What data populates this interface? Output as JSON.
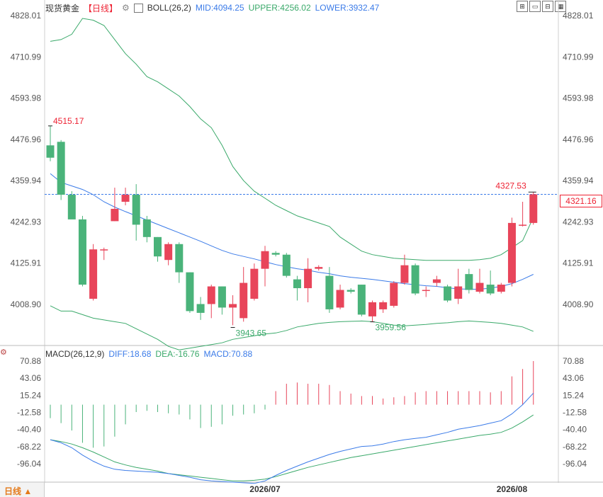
{
  "header": {
    "title": "现货黄金",
    "period_bracket": "【日线】",
    "boll_label": "BOLL(26,2)",
    "mid_label": "MID:4094.25",
    "upper_label": "UPPER:4256.02",
    "lower_label": "LOWER:3932.47"
  },
  "macd_header": {
    "macd_label": "MACD(26,12,9)",
    "diff_label": "DIFF:18.68",
    "dea_label": "DEA:-16.76",
    "macd_value_label": "MACD:70.88"
  },
  "footer": {
    "period_label": "日线 ▲",
    "x_ticks": [
      "2026/07",
      "2026/08"
    ]
  },
  "toolbar": {
    "icons": [
      "expand-icon",
      "minus-icon",
      "align-icon",
      "settings-icon"
    ]
  },
  "colors": {
    "up": "#e8455a",
    "down": "#4ab37a",
    "mid": "#3b7be8",
    "boll_band": "#3aa96a",
    "dea": "#3aa96a",
    "diff": "#3b7be8"
  },
  "current_price": "4321.16",
  "chart_data": [
    {
      "type": "candlestick",
      "title": "现货黄金",
      "y_ticks": [
        "4828.01",
        "4710.99",
        "4593.98",
        "4476.96",
        "4359.94",
        "4242.93",
        "4125.91",
        "4008.90"
      ],
      "ylim": [
        3880,
        4830
      ],
      "annotations": [
        {
          "text": "4515.17",
          "value": 4515.17
        },
        {
          "text": "3943.65",
          "value": 3943.65
        },
        {
          "text": "3959.56",
          "value": 3959.56
        },
        {
          "text": "4327.53",
          "value": 4327.53
        }
      ],
      "candles": [
        [
          4460,
          4425,
          4515.17,
          4415
        ],
        [
          4470,
          4320,
          4475,
          4305
        ],
        [
          4320,
          4250,
          4330,
          4275
        ],
        [
          4250,
          4065,
          4260,
          4060
        ],
        [
          4025,
          4165,
          4180,
          4020
        ],
        [
          4165,
          4165,
          4170,
          4135
        ],
        [
          4245,
          4280,
          4340,
          4245
        ],
        [
          4300,
          4320,
          4340,
          4290
        ],
        [
          4320,
          4235,
          4350,
          4190
        ],
        [
          4250,
          4200,
          4260,
          4185
        ],
        [
          4200,
          4145,
          4200,
          4130
        ],
        [
          4135,
          4180,
          4185,
          4120
        ],
        [
          4180,
          4100,
          4185,
          4070
        ],
        [
          4100,
          3990,
          4100,
          3985
        ],
        [
          4010,
          3985,
          4030,
          3965
        ],
        [
          4010,
          4060,
          4065,
          3970
        ],
        [
          4060,
          4000,
          4060,
          3980
        ],
        [
          4000,
          4010,
          4035,
          3950
        ],
        [
          3970,
          4070,
          4115,
          3960
        ],
        [
          4025,
          4110,
          4125,
          4020
        ],
        [
          4110,
          4160,
          4175,
          4060
        ],
        [
          4155,
          4150,
          4160,
          4145
        ],
        [
          4150,
          4090,
          4155,
          4085
        ],
        [
          4080,
          4055,
          4090,
          4020
        ],
        [
          4055,
          4110,
          4140,
          4015
        ],
        [
          4110,
          4115,
          4120,
          4105
        ],
        [
          4090,
          3995,
          4115,
          3985
        ],
        [
          4000,
          4050,
          4065,
          3995
        ],
        [
          4050,
          4045,
          4055,
          4040
        ],
        [
          4065,
          3980,
          4065,
          3975
        ],
        [
          3975,
          4015,
          4020,
          3959.56
        ],
        [
          3995,
          4015,
          4020,
          3985
        ],
        [
          4005,
          4070,
          4075,
          4000
        ],
        [
          4070,
          4120,
          4150,
          4065
        ],
        [
          4120,
          4040,
          4125,
          4035
        ],
        [
          4050,
          4050,
          4060,
          4030
        ],
        [
          4070,
          4080,
          4090,
          4060
        ],
        [
          4060,
          4020,
          4065,
          4015
        ],
        [
          4025,
          4060,
          4110,
          4010
        ],
        [
          4095,
          4050,
          4110,
          4040
        ],
        [
          4045,
          4070,
          4110,
          4040
        ],
        [
          4065,
          4040,
          4105,
          4035
        ],
        [
          4045,
          4065,
          4070,
          4040
        ],
        [
          4070,
          4240,
          4255,
          4060
        ],
        [
          4235,
          4235,
          4300,
          4230
        ],
        [
          4240,
          4321.16,
          4327.53,
          4235
        ]
      ],
      "mid": [
        4380,
        4355,
        4345,
        4335,
        4320,
        4300,
        4285,
        4272,
        4260,
        4248,
        4236,
        4224,
        4212,
        4200,
        4188,
        4175,
        4162,
        4152,
        4145,
        4138,
        4130,
        4122,
        4116,
        4110,
        4106,
        4100,
        4096,
        4090,
        4086,
        4083,
        4080,
        4076,
        4072,
        4068,
        4065,
        4062,
        4060,
        4056,
        4053,
        4052,
        4052,
        4055,
        4060,
        4068,
        4080,
        4094.25
      ],
      "upper": [
        4755,
        4760,
        4775,
        4820,
        4815,
        4800,
        4760,
        4720,
        4690,
        4655,
        4640,
        4620,
        4600,
        4570,
        4535,
        4510,
        4460,
        4400,
        4360,
        4330,
        4310,
        4290,
        4275,
        4260,
        4250,
        4240,
        4230,
        4200,
        4180,
        4160,
        4150,
        4145,
        4140,
        4138,
        4136,
        4134,
        4134,
        4134,
        4134,
        4134,
        4136,
        4140,
        4150,
        4170,
        4190,
        4256.02
      ],
      "lower": [
        4005,
        3990,
        3990,
        3980,
        3970,
        3965,
        3960,
        3955,
        3940,
        3925,
        3910,
        3890,
        3880,
        3885,
        3890,
        3895,
        3900,
        3910,
        3915,
        3920,
        3925,
        3928,
        3935,
        3945,
        3950,
        3955,
        3958,
        3960,
        3961,
        3962,
        3960,
        3955,
        3950,
        3948,
        3950,
        3952,
        3955,
        3957,
        3960,
        3962,
        3960,
        3958,
        3955,
        3950,
        3945,
        3932.47
      ]
    },
    {
      "type": "macd",
      "title": "MACD(26,12,9)",
      "y_ticks": [
        "70.88",
        "43.06",
        "15.24",
        "-12.58",
        "-40.40",
        "-68.22",
        "-96.04"
      ],
      "ylim": [
        -120,
        80
      ],
      "diff": [
        -57,
        -62,
        -70,
        -82,
        -92,
        -100,
        -105,
        -107,
        -108,
        -109,
        -110,
        -112,
        -115,
        -118,
        -122,
        -124,
        -125,
        -126,
        -127,
        -128,
        -124,
        -115,
        -107,
        -100,
        -93,
        -87,
        -81,
        -76,
        -72,
        -68,
        -67,
        -64,
        -60,
        -57,
        -55,
        -53,
        -49,
        -45,
        -40,
        -37,
        -34,
        -30,
        -26,
        -15,
        0,
        18.68
      ],
      "dea": [
        -57,
        -60,
        -64,
        -70,
        -77,
        -85,
        -93,
        -98,
        -102,
        -105,
        -108,
        -112,
        -114,
        -116,
        -118,
        -120,
        -122,
        -124,
        -124,
        -123,
        -121,
        -117,
        -112,
        -107,
        -102,
        -98,
        -94,
        -90,
        -86,
        -83,
        -80,
        -77,
        -74,
        -71,
        -68,
        -65,
        -62,
        -59,
        -56,
        -53,
        -50,
        -48,
        -45,
        -38,
        -28,
        -16.76
      ],
      "macd": [
        -22,
        -30,
        -42,
        -62,
        -70,
        -68,
        -52,
        -32,
        -12,
        -10,
        -12,
        -14,
        -16,
        -24,
        -38,
        -36,
        -32,
        -18,
        -16,
        -14,
        -8,
        22,
        34,
        36,
        34,
        34,
        32,
        22,
        18,
        14,
        14,
        10,
        12,
        14,
        20,
        22,
        22,
        22,
        22,
        22,
        22,
        20,
        22,
        46,
        58,
        70.88
      ]
    }
  ]
}
